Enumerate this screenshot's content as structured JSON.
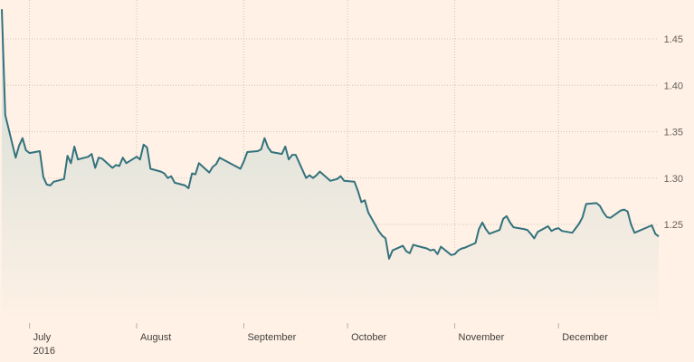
{
  "chart_data": {
    "type": "area",
    "title": "",
    "xlabel": "",
    "ylabel": "",
    "ylim": [
      1.15,
      1.49
    ],
    "yticks": [
      "1.45",
      "1.40",
      "1.35",
      "1.30",
      "1.25"
    ],
    "ytick_values": [
      1.45,
      1.4,
      1.35,
      1.3,
      1.25
    ],
    "y_axis_side": "right",
    "grid": true,
    "legend": "none",
    "colors": {
      "line": "#33727d",
      "area_top": "#cfdcd6",
      "background": "#fff1e5",
      "grid": "#cec6b9"
    },
    "xticks": [
      {
        "label": "July",
        "sub": "2016",
        "date": "2016-07-01"
      },
      {
        "label": "August",
        "sub": "",
        "date": "2016-08-01"
      },
      {
        "label": "September",
        "sub": "",
        "date": "2016-09-01"
      },
      {
        "label": "October",
        "sub": "",
        "date": "2016-10-01"
      },
      {
        "label": "November",
        "sub": "",
        "date": "2016-11-01"
      },
      {
        "label": "December",
        "sub": "",
        "date": "2016-12-01"
      }
    ],
    "x_range": [
      "2016-06-23",
      "2016-12-30"
    ],
    "series": [
      {
        "x": [
          "2016-06-23",
          "2016-06-24",
          "2016-06-27",
          "2016-06-28",
          "2016-06-29",
          "2016-06-30",
          "2016-07-01",
          "2016-07-04",
          "2016-07-05",
          "2016-07-06",
          "2016-07-07",
          "2016-07-08",
          "2016-07-11",
          "2016-07-12",
          "2016-07-13",
          "2016-07-14",
          "2016-07-15",
          "2016-07-18",
          "2016-07-19",
          "2016-07-20",
          "2016-07-21",
          "2016-07-22",
          "2016-07-25",
          "2016-07-26",
          "2016-07-27",
          "2016-07-28",
          "2016-07-29",
          "2016-08-01",
          "2016-08-02",
          "2016-08-03",
          "2016-08-04",
          "2016-08-05",
          "2016-08-08",
          "2016-08-09",
          "2016-08-10",
          "2016-08-11",
          "2016-08-12",
          "2016-08-15",
          "2016-08-16",
          "2016-08-17",
          "2016-08-18",
          "2016-08-19",
          "2016-08-22",
          "2016-08-23",
          "2016-08-24",
          "2016-08-25",
          "2016-08-26",
          "2016-08-29",
          "2016-08-30",
          "2016-08-31",
          "2016-09-01",
          "2016-09-02",
          "2016-09-05",
          "2016-09-06",
          "2016-09-07",
          "2016-09-08",
          "2016-09-09",
          "2016-09-12",
          "2016-09-13",
          "2016-09-14",
          "2016-09-15",
          "2016-09-16",
          "2016-09-19",
          "2016-09-20",
          "2016-09-21",
          "2016-09-22",
          "2016-09-23",
          "2016-09-26",
          "2016-09-27",
          "2016-09-28",
          "2016-09-29",
          "2016-09-30",
          "2016-10-03",
          "2016-10-04",
          "2016-10-05",
          "2016-10-06",
          "2016-10-07",
          "2016-10-10",
          "2016-10-11",
          "2016-10-12",
          "2016-10-13",
          "2016-10-14",
          "2016-10-17",
          "2016-10-18",
          "2016-10-19",
          "2016-10-20",
          "2016-10-21",
          "2016-10-24",
          "2016-10-25",
          "2016-10-26",
          "2016-10-27",
          "2016-10-28",
          "2016-10-31",
          "2016-11-01",
          "2016-11-02",
          "2016-11-03",
          "2016-11-04",
          "2016-11-07",
          "2016-11-08",
          "2016-11-09",
          "2016-11-10",
          "2016-11-11",
          "2016-11-14",
          "2016-11-15",
          "2016-11-16",
          "2016-11-17",
          "2016-11-18",
          "2016-11-21",
          "2016-11-22",
          "2016-11-23",
          "2016-11-24",
          "2016-11-25",
          "2016-11-28",
          "2016-11-29",
          "2016-11-30",
          "2016-12-01",
          "2016-12-02",
          "2016-12-05",
          "2016-12-06",
          "2016-12-07",
          "2016-12-08",
          "2016-12-09",
          "2016-12-12",
          "2016-12-13",
          "2016-12-14",
          "2016-12-15",
          "2016-12-16",
          "2016-12-19",
          "2016-12-20",
          "2016-12-21",
          "2016-12-22",
          "2016-12-23",
          "2016-12-28",
          "2016-12-29",
          "2016-12-30"
        ],
        "values": [
          1.482,
          1.368,
          1.322,
          1.335,
          1.343,
          1.33,
          1.327,
          1.329,
          1.301,
          1.293,
          1.292,
          1.296,
          1.299,
          1.324,
          1.316,
          1.334,
          1.32,
          1.323,
          1.326,
          1.311,
          1.322,
          1.321,
          1.311,
          1.314,
          1.313,
          1.322,
          1.316,
          1.323,
          1.32,
          1.336,
          1.333,
          1.31,
          1.307,
          1.305,
          1.3,
          1.302,
          1.295,
          1.292,
          1.289,
          1.305,
          1.304,
          1.316,
          1.306,
          1.312,
          1.315,
          1.322,
          1.32,
          1.314,
          1.312,
          1.31,
          1.318,
          1.328,
          1.329,
          1.331,
          1.343,
          1.333,
          1.328,
          1.326,
          1.334,
          1.32,
          1.325,
          1.325,
          1.3,
          1.303,
          1.3,
          1.303,
          1.307,
          1.297,
          1.298,
          1.299,
          1.302,
          1.297,
          1.296,
          1.286,
          1.274,
          1.276,
          1.263,
          1.243,
          1.238,
          1.235,
          1.213,
          1.222,
          1.227,
          1.221,
          1.219,
          1.228,
          1.227,
          1.224,
          1.222,
          1.223,
          1.218,
          1.226,
          1.217,
          1.218,
          1.222,
          1.224,
          1.225,
          1.23,
          1.245,
          1.252,
          1.245,
          1.24,
          1.244,
          1.256,
          1.259,
          1.252,
          1.247,
          1.245,
          1.244,
          1.24,
          1.235,
          1.242,
          1.248,
          1.243,
          1.245,
          1.246,
          1.243,
          1.241,
          1.246,
          1.251,
          1.258,
          1.272,
          1.273,
          1.27,
          1.263,
          1.258,
          1.257,
          1.265,
          1.266,
          1.264,
          1.25,
          1.241,
          1.249,
          1.24,
          1.237
        ]
      }
    ]
  }
}
